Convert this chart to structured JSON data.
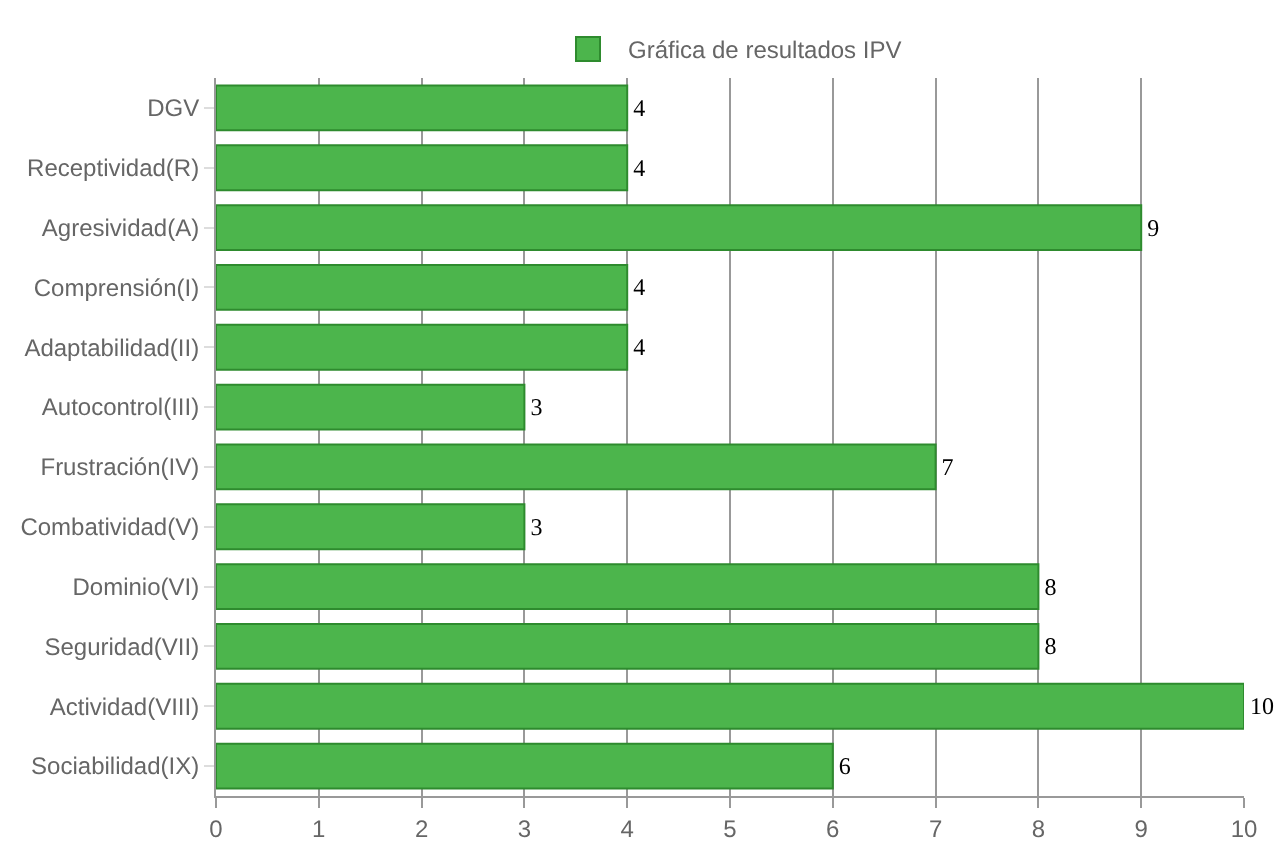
{
  "chart_data": {
    "type": "bar",
    "orientation": "horizontal",
    "categories": [
      "DGV",
      "Receptividad(R)",
      "Agresividad(A)",
      "Comprensión(I)",
      "Adaptabilidad(II)",
      "Autocontrol(III)",
      "Frustración(IV)",
      "Combatividad(V)",
      "Dominio(VI)",
      "Seguridad(VII)",
      "Actividad(VIII)",
      "Sociabilidad(IX)"
    ],
    "series": [
      {
        "name": "Gráfica de resultados IPV",
        "color": "#4cb54c",
        "values": [
          4,
          4,
          9,
          4,
          4,
          3,
          7,
          3,
          8,
          8,
          10,
          6
        ]
      }
    ],
    "xlim": [
      0,
      10
    ],
    "xticks": [
      0,
      1,
      2,
      3,
      4,
      5,
      6,
      7,
      8,
      9,
      10
    ],
    "grid": "x",
    "legend": "top",
    "data_labels": true
  }
}
